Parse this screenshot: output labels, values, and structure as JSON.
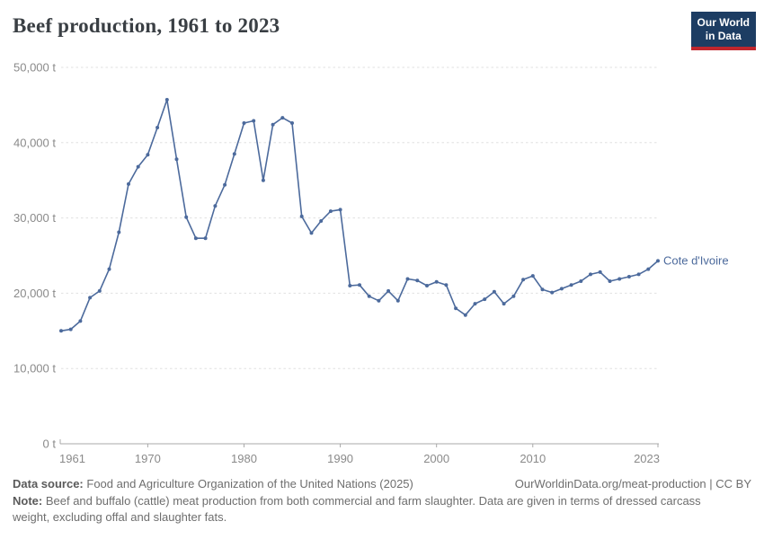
{
  "header": {
    "title": "Beef production, 1961 to 2023",
    "logo_line1": "Our World",
    "logo_line2": "in Data"
  },
  "chart_data": {
    "type": "line",
    "title": "Beef production, 1961 to 2023",
    "xlabel": "",
    "ylabel": "",
    "unit": "t",
    "xlim": [
      1961,
      2023
    ],
    "ylim": [
      0,
      50000
    ],
    "x_ticks": [
      1961,
      1970,
      1980,
      1990,
      2000,
      2010,
      2023
    ],
    "y_ticks": [
      0,
      10000,
      20000,
      30000,
      40000,
      50000
    ],
    "grid": "horizontal-dashed",
    "legend_position": "end-of-line-label",
    "series": [
      {
        "name": "Cote d'Ivoire",
        "color": "#4C6A9C",
        "x": [
          1961,
          1962,
          1963,
          1964,
          1965,
          1966,
          1967,
          1968,
          1969,
          1970,
          1971,
          1972,
          1973,
          1974,
          1975,
          1976,
          1977,
          1978,
          1979,
          1980,
          1981,
          1982,
          1983,
          1984,
          1985,
          1986,
          1987,
          1988,
          1989,
          1990,
          1991,
          1992,
          1993,
          1994,
          1995,
          1996,
          1997,
          1998,
          1999,
          2000,
          2001,
          2002,
          2003,
          2004,
          2005,
          2006,
          2007,
          2008,
          2009,
          2010,
          2011,
          2012,
          2013,
          2014,
          2015,
          2016,
          2017,
          2018,
          2019,
          2020,
          2021,
          2022,
          2023
        ],
        "values": [
          15000,
          15200,
          16300,
          19400,
          20300,
          23200,
          28100,
          34500,
          36800,
          38400,
          42000,
          45700,
          37800,
          30100,
          27300,
          27300,
          31600,
          34400,
          38500,
          42600,
          42900,
          35000,
          42400,
          43300,
          42600,
          30200,
          28000,
          29600,
          30900,
          31100,
          21000,
          21100,
          19600,
          19000,
          20300,
          19000,
          21900,
          21700,
          21000,
          21500,
          21100,
          18000,
          17100,
          18600,
          19200,
          20200,
          18600,
          19600,
          21800,
          22300,
          20500,
          20100,
          20600,
          21100,
          21600,
          22500,
          22800,
          21600,
          21900,
          22200,
          22500,
          23200,
          24300
        ]
      }
    ]
  },
  "footer": {
    "datasource_label": "Data source:",
    "datasource": "Food and Agriculture Organization of the United Nations (2025)",
    "link": "OurWorldinData.org/meat-production | CC BY",
    "note_label": "Note:",
    "note": "Beef and buffalo (cattle) meat production from both commercial and farm slaughter. Data are given in terms of dressed carcass weight, excluding offal and slaughter fats."
  },
  "colors": {
    "line": "#4C6A9C",
    "title_text": "#3a3f44",
    "tick_text": "#8a8a8a",
    "gridline": "#e0e0e0",
    "axis": "#a9a9a9",
    "logo_bg": "#1D3D63",
    "logo_red": "#C0262D"
  }
}
